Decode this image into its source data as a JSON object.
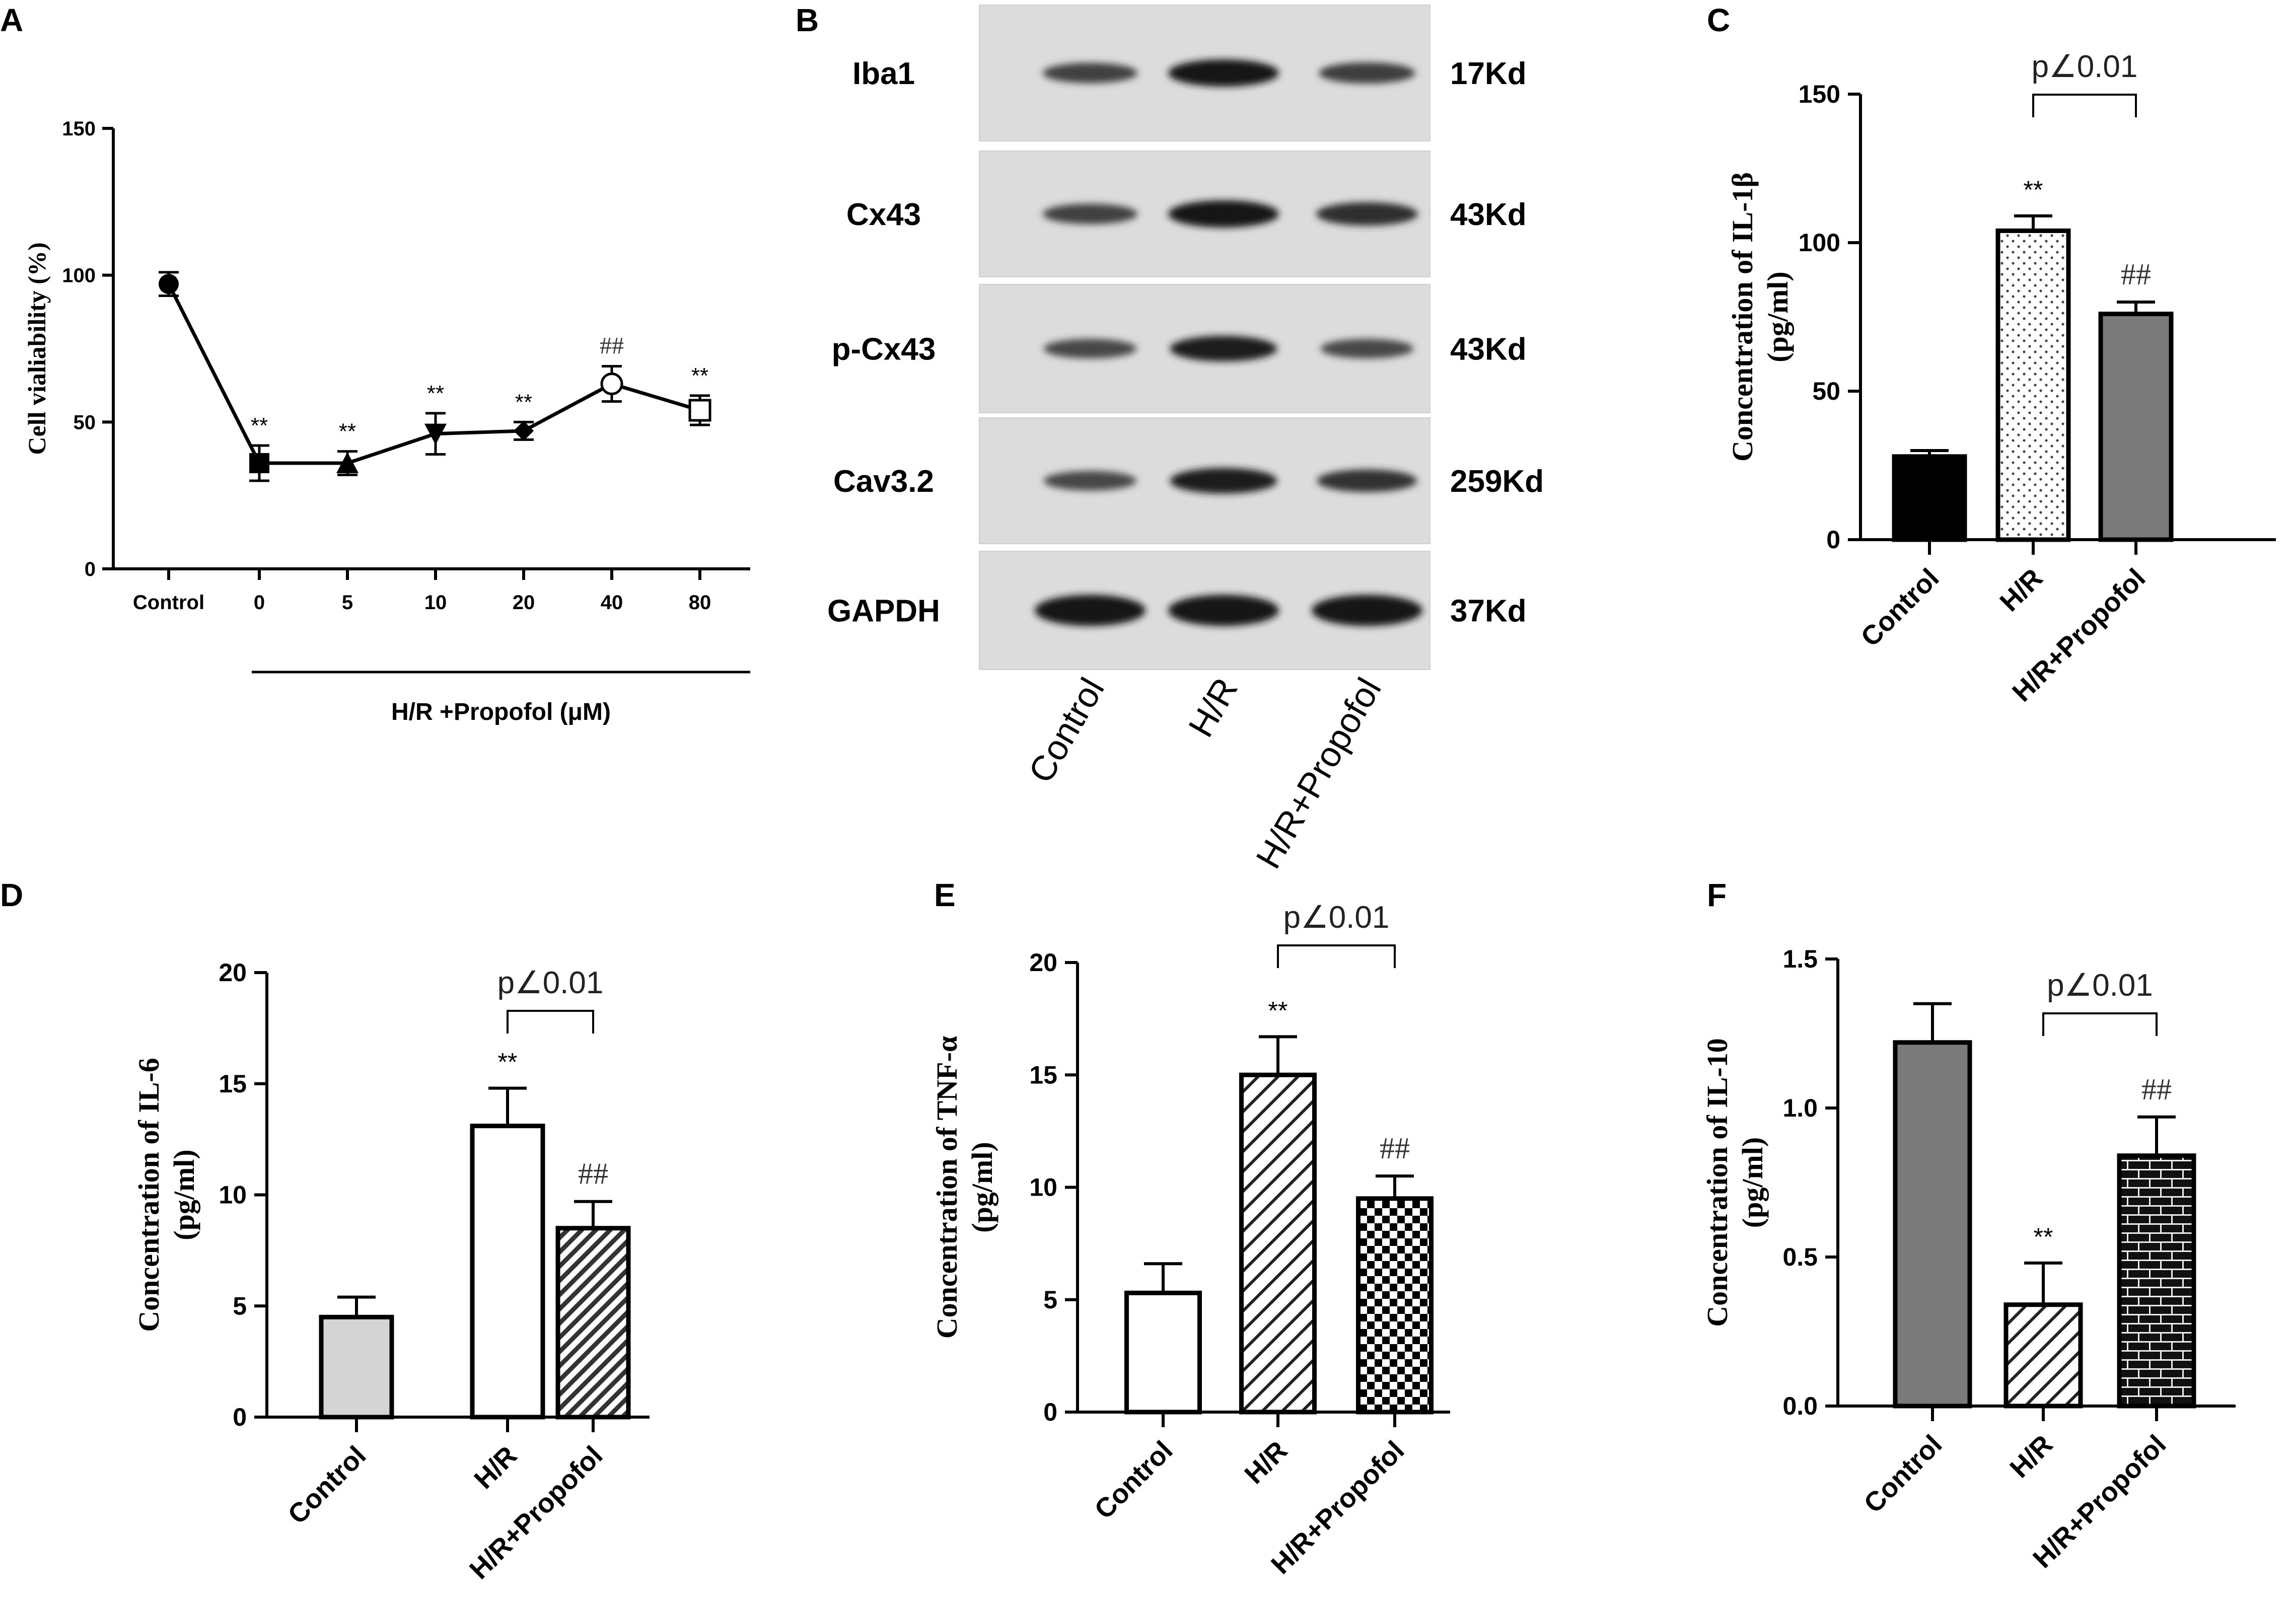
{
  "panel_letters": [
    "A",
    "B",
    "C",
    "D",
    "E",
    "F"
  ],
  "significance": {
    "star": "**",
    "hash": "##",
    "p_label": "p∠0.01"
  },
  "colors": {
    "ink": "#000000",
    "blot_bg": "#dcdcdc",
    "band": "#1a1a1a",
    "light_gray": "#d4d4d4",
    "mid_gray": "#7a7a7a",
    "dark_gray": "#333333"
  },
  "chart_data": [
    {
      "panel": "A",
      "type": "line",
      "ylabel": "Cell vialiability (%)",
      "xlabel": "H/R +Propofol (μM)",
      "categories": [
        "Control",
        "0",
        "5",
        "10",
        "20",
        "40",
        "80"
      ],
      "values": [
        97,
        36,
        36,
        46,
        47,
        63,
        54
      ],
      "errors": [
        4,
        6,
        4,
        7,
        3,
        6,
        5
      ],
      "markers": [
        "circle",
        "square",
        "triangle-up",
        "triangle-down",
        "diamond",
        "circle-open",
        "square-open"
      ],
      "annotations": [
        "",
        "**",
        "**",
        "**",
        "**",
        "##",
        "**"
      ],
      "ylim": [
        0,
        150
      ],
      "yticks": [
        0,
        50,
        100,
        150
      ]
    },
    {
      "panel": "B",
      "type": "western-blot",
      "rows": [
        {
          "protein": "Iba1",
          "size": "17Kd",
          "intensity": [
            0.55,
            1.0,
            0.6
          ]
        },
        {
          "protein": "Cx43",
          "size": "43Kd",
          "intensity": [
            0.55,
            1.0,
            0.75
          ]
        },
        {
          "protein": "p-Cx43",
          "size": "43Kd",
          "intensity": [
            0.5,
            0.9,
            0.5
          ]
        },
        {
          "protein": "Cav3.2",
          "size": "259Kd",
          "intensity": [
            0.5,
            0.9,
            0.7
          ]
        },
        {
          "protein": "GAPDH",
          "size": "37Kd",
          "intensity": [
            1.0,
            1.0,
            1.0
          ]
        }
      ],
      "lanes": [
        "Control",
        "H/R",
        "H/R+Propofol"
      ]
    },
    {
      "panel": "C",
      "type": "bar",
      "ylabel_line1": "Concentration of IL-1β",
      "ylabel_line2": "(pg/ml)",
      "categories": [
        "Control",
        "H/R",
        "H/R+Propofol"
      ],
      "values": [
        28,
        104,
        76
      ],
      "errors": [
        2,
        5,
        4
      ],
      "fills": [
        "black",
        "dots",
        "gray"
      ],
      "annotations": [
        "",
        "**",
        "##"
      ],
      "ylim": [
        0,
        150
      ],
      "yticks": [
        0,
        50,
        100,
        150
      ],
      "bracket": "p∠0.01"
    },
    {
      "panel": "D",
      "type": "bar",
      "ylabel_line1": "Concentration of IL-6",
      "ylabel_line2": "(pg/ml)",
      "categories": [
        "Control",
        "H/R",
        "H/R+Propofol"
      ],
      "values": [
        4.5,
        13.1,
        8.5
      ],
      "errors": [
        0.9,
        1.7,
        1.2
      ],
      "fills": [
        "lightgray",
        "white",
        "diag-dense"
      ],
      "annotations": [
        "",
        "**",
        "##"
      ],
      "ylim": [
        0,
        20
      ],
      "yticks": [
        0,
        5,
        10,
        15,
        20
      ],
      "bracket": "p∠0.01"
    },
    {
      "panel": "E",
      "type": "bar",
      "ylabel_line1": "Concentration of TNF-α",
      "ylabel_line2": "(pg/ml)",
      "categories": [
        "Control",
        "H/R",
        "H/R+Propofol"
      ],
      "values": [
        5.3,
        15.0,
        9.5
      ],
      "errors": [
        1.3,
        1.7,
        1.0
      ],
      "fills": [
        "white",
        "diag",
        "checker"
      ],
      "annotations": [
        "",
        "**",
        "##"
      ],
      "ylim": [
        0,
        20
      ],
      "yticks": [
        0,
        5,
        10,
        15,
        20
      ],
      "bracket": "p∠0.01"
    },
    {
      "panel": "F",
      "type": "bar",
      "ylabel_line1": "Concentration of IL-10",
      "ylabel_line2": "(pg/ml)",
      "categories": [
        "Control",
        "H/R",
        "H/R+Propofol"
      ],
      "values": [
        1.22,
        0.34,
        0.84
      ],
      "errors": [
        0.13,
        0.14,
        0.13
      ],
      "fills": [
        "gray",
        "diag",
        "brick"
      ],
      "annotations": [
        "",
        "**",
        "##"
      ],
      "ylim": [
        0,
        1.5
      ],
      "yticks": [
        "0.0",
        "0.5",
        "1.0",
        "1.5"
      ],
      "bracket": "p∠0.01"
    }
  ]
}
